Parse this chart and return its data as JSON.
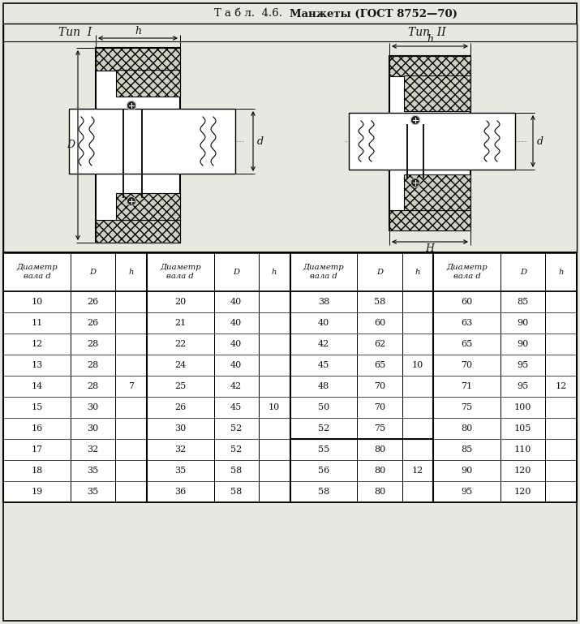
{
  "title_plain": "Т а б л.  4.6.  ",
  "title_bold": "Манжеты (ГОСТ 8752—70)",
  "type1_label": "Тип  I",
  "type2_label": "Тип  II",
  "col_headers": [
    "Диаметр\nвала d",
    "D",
    "h",
    "Диаметр\nвала d",
    "D",
    "h",
    "Диаметр\nвала d",
    "D",
    "h",
    "Диаметр\nвала d",
    "D",
    "h"
  ],
  "table_data": [
    [
      "10",
      "26",
      "",
      "20",
      "40",
      "",
      "38",
      "58",
      "",
      "60",
      "85",
      ""
    ],
    [
      "11",
      "26",
      "",
      "21",
      "40",
      "",
      "40",
      "60",
      "",
      "63",
      "90",
      ""
    ],
    [
      "12",
      "28",
      "",
      "22",
      "40",
      "",
      "42",
      "62",
      "",
      "65",
      "90",
      ""
    ],
    [
      "13",
      "28",
      "",
      "24",
      "40",
      "",
      "45",
      "65",
      "10",
      "70",
      "95",
      ""
    ],
    [
      "14",
      "28",
      "7",
      "25",
      "42",
      "",
      "48",
      "70",
      "",
      "71",
      "95",
      "12"
    ],
    [
      "15",
      "30",
      "",
      "26",
      "45",
      "10",
      "50",
      "70",
      "",
      "75",
      "100",
      ""
    ],
    [
      "16",
      "30",
      "",
      "30",
      "52",
      "",
      "52",
      "75",
      "",
      "80",
      "105",
      ""
    ],
    [
      "17",
      "32",
      "",
      "32",
      "52",
      "",
      "55",
      "80",
      "",
      "85",
      "110",
      ""
    ],
    [
      "18",
      "35",
      "",
      "35",
      "58",
      "",
      "56",
      "80",
      "12",
      "90",
      "120",
      ""
    ],
    [
      "19",
      "35",
      "",
      "36",
      "58",
      "",
      "58",
      "80",
      "",
      "95",
      "120",
      ""
    ]
  ],
  "bg_color": "#e8e8e0",
  "text_color": "#111111"
}
